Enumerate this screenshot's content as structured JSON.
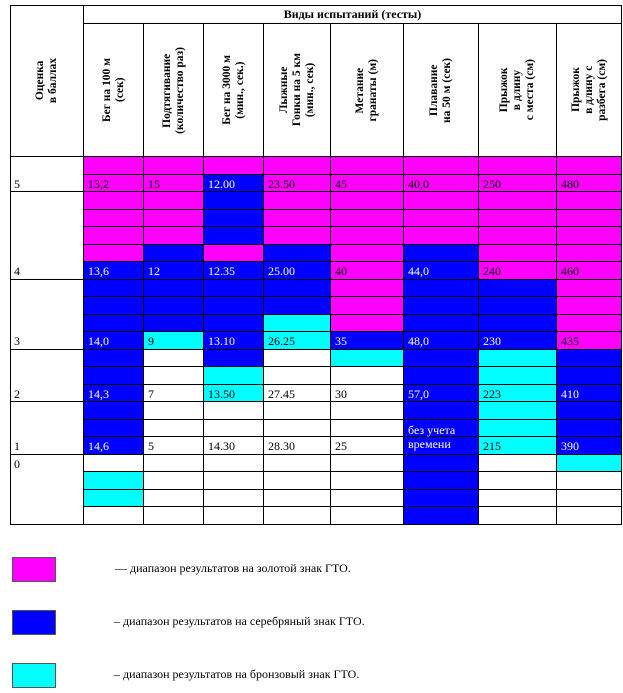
{
  "header": {
    "score_title": "Оценка\nв баллах",
    "tests_title": "Виды испытаний (тесты)",
    "columns": [
      "Бег на 100 м\n(сек)",
      "Подтягивание\n(количество раз)",
      "Бег на 3000 м\n(мин., сек.)",
      "Лыжные\nГонки на 5 км\n(мин., сек)",
      "Метание\nгранаты (м)",
      "Плавание\nна 50 м (сек)",
      "Прыжок\nв длину\nс места (см)",
      "Прыжок\nв длину с\nразбега (см)"
    ]
  },
  "scores": [
    {
      "label": "5",
      "row": 1
    },
    {
      "label": "4",
      "row": 6
    },
    {
      "label": "3",
      "row": 10
    },
    {
      "label": "2",
      "row": 13
    },
    {
      "label": "1",
      "row": 16
    },
    {
      "label": "0",
      "row": 17
    }
  ],
  "values": [
    [
      "13,2",
      "15",
      "12.00",
      "23.50",
      "45",
      "40,0",
      "250",
      "480"
    ],
    [
      "13,6",
      "12",
      "12.35",
      "25.00",
      "40",
      "44,0",
      "240",
      "460"
    ],
    [
      "14,0",
      "9",
      "13.10",
      "26.25",
      "35",
      "48,0",
      "230",
      "435"
    ],
    [
      "14,3",
      "7",
      "13.50",
      "27.45",
      "30",
      "57,0",
      "223",
      "410"
    ],
    [
      "14,6",
      "5",
      "14.30",
      "28.30",
      "25",
      "без учета\nвремени",
      "215",
      "390"
    ]
  ],
  "value_rows": [
    1,
    6,
    10,
    13,
    16
  ],
  "colors": {
    "gold": "#ff00ff",
    "silver": "#0000ff",
    "bronze": "#00ffff",
    "none": "#ffffff"
  },
  "cell_colors": [
    "GGGGGGGG",
    "GGSGGGGG",
    "GGSGGGGG",
    "GGSGGGGG",
    "GGSGGGGG",
    "GSGSGSGG",
    "SSSSGSGG",
    "SSSSGSSG",
    "SSSSGSSG",
    "SSSBGSSG",
    "SBSBSSSG",
    "SWSWBSBS",
    "SWBWWSBS",
    "SWBWWSBS",
    "SWWWWSBS",
    "SWWWWSBS",
    "SWWWWSBS",
    "WWWWWSWB",
    "BWWWWSWW",
    "BWWWWSWW",
    "WWWWWSWW"
  ],
  "legend": [
    {
      "color": "#ff00ff",
      "text": "— диапазон результатов на золотой знак ГТО."
    },
    {
      "color": "#0000ff",
      "text": "– диапазон результатов на серебряный знак ГТО."
    },
    {
      "color": "#00ffff",
      "text": "– диапазон результатов на бронзовый знак ГТО."
    }
  ]
}
